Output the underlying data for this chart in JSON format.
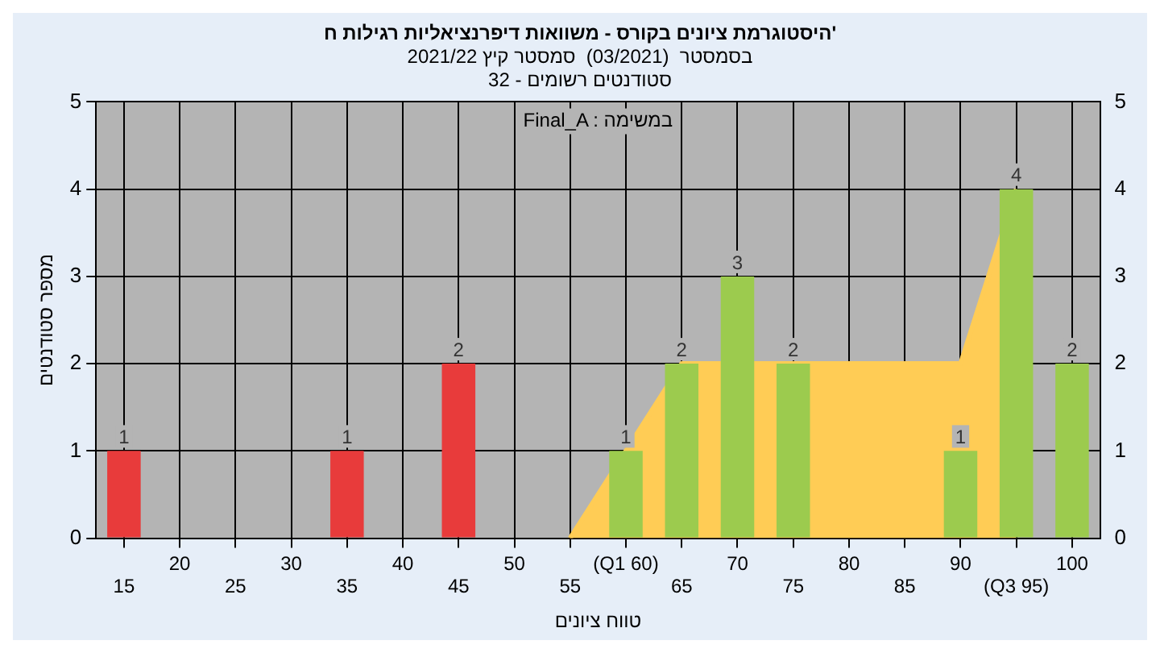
{
  "chart_data": {
    "type": "bar",
    "title": "היסטוגרמת ציונים בקורס - משוואות דיפרנציאליות רגילות ח'",
    "subtitle": "בסמסטר  (03/2021)  סמסטר קיץ 2021/22\nסטודנטים רשומים - 32",
    "xlabel": "טווח ציונים",
    "ylabel": "מספר סטודנטים",
    "annotations": [
      "Final_A : במשימה"
    ],
    "categories": [
      "15",
      "20",
      "25",
      "30",
      "35",
      "40",
      "45",
      "50",
      "55",
      "(Q1 60)",
      "65",
      "70",
      "75",
      "80",
      "85",
      "90",
      "(Q3 95)",
      "100"
    ],
    "series": [
      {
        "values": [
          1,
          0,
          0,
          0,
          1,
          0,
          2,
          0,
          0,
          1,
          2,
          3,
          2,
          0,
          0,
          1,
          4,
          2
        ],
        "colors": [
          "#e83b3b",
          "#e83b3b",
          "#e83b3b",
          "#e83b3b",
          "#e83b3b",
          "#e83b3b",
          "#e83b3b",
          "#e83b3b",
          "#e83b3b",
          "#9ccb4e",
          "#9ccb4e",
          "#9ccb4e",
          "#9ccb4e",
          "#9ccb4e",
          "#9ccb4e",
          "#9ccb4e",
          "#9ccb4e",
          "#9ccb4e"
        ],
        "value_labels": [
          "1",
          null,
          null,
          null,
          "1",
          null,
          "2",
          null,
          null,
          "1",
          "2",
          "3",
          "2",
          null,
          null,
          "1",
          "4",
          "2"
        ]
      },
      {
        "type": "area",
        "color": "#ffcc55",
        "values": [
          null,
          null,
          null,
          null,
          null,
          null,
          null,
          null,
          0,
          1,
          2,
          2,
          2,
          2,
          2,
          2,
          4,
          null
        ]
      }
    ],
    "ylim": [
      0,
      5
    ],
    "yticks": [
      0,
      1,
      2,
      3,
      4,
      5
    ],
    "y2lim": [
      0,
      5
    ],
    "y2ticks": [
      0,
      1,
      2,
      3,
      4,
      5
    ],
    "grid": true,
    "legend": false
  }
}
